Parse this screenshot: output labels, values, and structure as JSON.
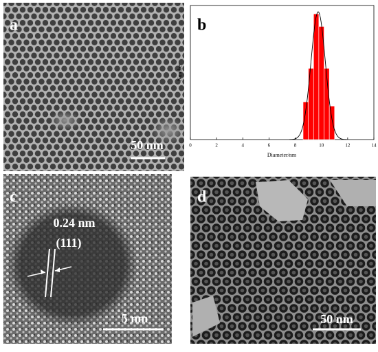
{
  "panels": [
    {
      "label": "a",
      "scale_bar": "50 nm"
    },
    {
      "label": "c",
      "scale_bar": "5 nm",
      "annotation": "0.24 nm",
      "plane": "(111)"
    },
    {
      "label": "d",
      "scale_bar": "50 nm"
    }
  ],
  "chart_data": {
    "type": "histogram",
    "panel_label": "b",
    "xlabel": "Diameter/nm",
    "ylabel": "Number",
    "bins": [
      8.6,
      9.0,
      9.4,
      9.8,
      10.2,
      10.6,
      11.0
    ],
    "values": [
      9,
      17,
      30,
      27,
      17,
      8
    ],
    "color": "#ff0000",
    "xlim": [
      0,
      14
    ],
    "xticks": [
      0,
      2,
      4,
      6,
      8,
      10,
      12,
      14
    ],
    "ylim": [
      0,
      32
    ],
    "fit": {
      "amplitude": 30.5,
      "mean": 9.75,
      "sd": 0.55
    }
  }
}
